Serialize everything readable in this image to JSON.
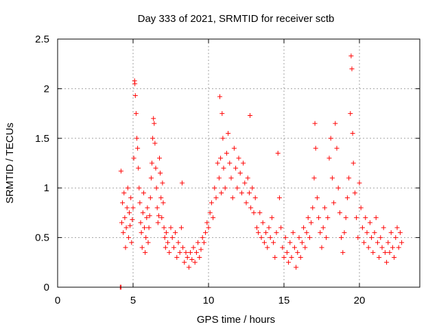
{
  "chart_data": {
    "type": "scatter",
    "title": "Day 333 of 2021, SRMTID for receiver sctb",
    "xlabel": "GPS time / hours",
    "ylabel": "SRMTID / TECUs",
    "xlim": [
      0,
      24
    ],
    "ylim": [
      0,
      2.5
    ],
    "x_ticks": [
      0,
      5,
      10,
      15,
      20
    ],
    "x_tick_labels": [
      "0",
      "5",
      "10",
      "15",
      "20"
    ],
    "y_ticks": [
      0,
      0.5,
      1,
      1.5,
      2,
      2.5
    ],
    "y_tick_labels": [
      "0",
      "0.5",
      "1",
      "1.5",
      "2",
      "2.5"
    ],
    "grid": true,
    "marker": "+",
    "series": [
      {
        "name": "SRMTID",
        "color": "#ff0000",
        "points": [
          [
            4.15,
            0.0
          ],
          [
            4.2,
            0.0
          ],
          [
            4.2,
            1.17
          ],
          [
            4.25,
            0.65
          ],
          [
            4.3,
            0.85
          ],
          [
            4.35,
            0.55
          ],
          [
            4.4,
            0.95
          ],
          [
            4.45,
            0.7
          ],
          [
            4.5,
            0.4
          ],
          [
            4.55,
            0.6
          ],
          [
            4.6,
            0.8
          ],
          [
            4.65,
            1.0
          ],
          [
            4.7,
            0.5
          ],
          [
            4.75,
            0.75
          ],
          [
            4.8,
            0.62
          ],
          [
            4.85,
            0.9
          ],
          [
            4.9,
            0.45
          ],
          [
            4.95,
            0.68
          ],
          [
            5.0,
            0.8
          ],
          [
            5.05,
            1.3
          ],
          [
            5.1,
            2.08
          ],
          [
            5.12,
            2.05
          ],
          [
            5.15,
            1.93
          ],
          [
            5.2,
            1.75
          ],
          [
            5.25,
            1.5
          ],
          [
            5.3,
            1.4
          ],
          [
            5.35,
            1.2
          ],
          [
            5.4,
            1.0
          ],
          [
            5.45,
            0.85
          ],
          [
            5.5,
            0.65
          ],
          [
            5.55,
            0.55
          ],
          [
            5.6,
            0.4
          ],
          [
            5.65,
            0.75
          ],
          [
            5.7,
            0.95
          ],
          [
            5.75,
            0.6
          ],
          [
            5.8,
            0.35
          ],
          [
            5.85,
            0.5
          ],
          [
            5.9,
            0.7
          ],
          [
            5.95,
            0.8
          ],
          [
            6.0,
            0.45
          ],
          [
            6.05,
            0.6
          ],
          [
            6.1,
            0.72
          ],
          [
            6.15,
            0.9
          ],
          [
            6.2,
            1.1
          ],
          [
            6.25,
            1.25
          ],
          [
            6.3,
            1.5
          ],
          [
            6.35,
            1.7
          ],
          [
            6.4,
            1.65
          ],
          [
            6.45,
            1.45
          ],
          [
            6.5,
            1.2
          ],
          [
            6.55,
            1.0
          ],
          [
            6.6,
            0.8
          ],
          [
            6.65,
            0.65
          ],
          [
            6.7,
            0.72
          ],
          [
            6.75,
            1.3
          ],
          [
            6.8,
            1.15
          ],
          [
            6.85,
            0.9
          ],
          [
            6.9,
            0.7
          ],
          [
            6.95,
            1.05
          ],
          [
            7.0,
            0.85
          ],
          [
            7.05,
            0.6
          ],
          [
            7.1,
            0.5
          ],
          [
            7.15,
            0.4
          ],
          [
            7.2,
            0.55
          ],
          [
            7.3,
            0.45
          ],
          [
            7.4,
            0.35
          ],
          [
            7.5,
            0.6
          ],
          [
            7.6,
            0.5
          ],
          [
            7.7,
            0.4
          ],
          [
            7.8,
            0.55
          ],
          [
            7.9,
            0.3
          ],
          [
            8.0,
            0.45
          ],
          [
            8.1,
            0.35
          ],
          [
            8.2,
            0.6
          ],
          [
            8.25,
            1.05
          ],
          [
            8.3,
            0.4
          ],
          [
            8.4,
            0.25
          ],
          [
            8.5,
            0.35
          ],
          [
            8.6,
            0.3
          ],
          [
            8.7,
            0.2
          ],
          [
            8.8,
            0.35
          ],
          [
            8.9,
            0.28
          ],
          [
            9.0,
            0.4
          ],
          [
            9.1,
            0.25
          ],
          [
            9.2,
            0.35
          ],
          [
            9.3,
            0.45
          ],
          [
            9.4,
            0.3
          ],
          [
            9.5,
            0.38
          ],
          [
            9.6,
            0.5
          ],
          [
            9.7,
            0.45
          ],
          [
            9.8,
            0.55
          ],
          [
            9.9,
            0.65
          ],
          [
            10.0,
            0.6
          ],
          [
            10.1,
            0.75
          ],
          [
            10.2,
            0.85
          ],
          [
            10.3,
            0.7
          ],
          [
            10.4,
            1.0
          ],
          [
            10.5,
            0.9
          ],
          [
            10.6,
            1.25
          ],
          [
            10.7,
            1.1
          ],
          [
            10.75,
            1.92
          ],
          [
            10.8,
            1.3
          ],
          [
            10.85,
            0.95
          ],
          [
            10.9,
            1.75
          ],
          [
            10.95,
            1.5
          ],
          [
            11.0,
            1.2
          ],
          [
            11.1,
            1.0
          ],
          [
            11.2,
            1.35
          ],
          [
            11.3,
            1.55
          ],
          [
            11.4,
            1.25
          ],
          [
            11.5,
            1.1
          ],
          [
            11.6,
            0.9
          ],
          [
            11.7,
            1.4
          ],
          [
            11.8,
            1.2
          ],
          [
            11.9,
            1.0
          ],
          [
            12.0,
            1.3
          ],
          [
            12.1,
            1.15
          ],
          [
            12.2,
            0.95
          ],
          [
            12.3,
            1.25
          ],
          [
            12.4,
            1.05
          ],
          [
            12.5,
            0.85
          ],
          [
            12.6,
            1.1
          ],
          [
            12.7,
            0.95
          ],
          [
            12.75,
            1.73
          ],
          [
            12.8,
            0.8
          ],
          [
            12.9,
            1.0
          ],
          [
            13.0,
            0.75
          ],
          [
            13.1,
            0.9
          ],
          [
            13.2,
            0.6
          ],
          [
            13.3,
            0.55
          ],
          [
            13.4,
            0.75
          ],
          [
            13.5,
            0.5
          ],
          [
            13.6,
            0.65
          ],
          [
            13.7,
            0.45
          ],
          [
            13.8,
            0.55
          ],
          [
            13.9,
            0.4
          ],
          [
            14.0,
            0.6
          ],
          [
            14.1,
            0.5
          ],
          [
            14.2,
            0.7
          ],
          [
            14.3,
            0.45
          ],
          [
            14.4,
            0.3
          ],
          [
            14.5,
            0.55
          ],
          [
            14.6,
            1.35
          ],
          [
            14.7,
            0.9
          ],
          [
            14.8,
            0.6
          ],
          [
            14.9,
            0.4
          ],
          [
            15.0,
            0.3
          ],
          [
            15.1,
            0.5
          ],
          [
            15.2,
            0.35
          ],
          [
            15.3,
            0.25
          ],
          [
            15.4,
            0.45
          ],
          [
            15.5,
            0.3
          ],
          [
            15.6,
            0.55
          ],
          [
            15.7,
            0.4
          ],
          [
            15.8,
            0.2
          ],
          [
            15.9,
            0.35
          ],
          [
            16.0,
            0.5
          ],
          [
            16.1,
            0.3
          ],
          [
            16.2,
            0.45
          ],
          [
            16.3,
            0.6
          ],
          [
            16.4,
            0.4
          ],
          [
            16.5,
            0.55
          ],
          [
            16.6,
            0.7
          ],
          [
            16.7,
            0.5
          ],
          [
            16.8,
            0.65
          ],
          [
            16.9,
            0.8
          ],
          [
            17.0,
            1.1
          ],
          [
            17.05,
            1.65
          ],
          [
            17.1,
            1.4
          ],
          [
            17.2,
            0.9
          ],
          [
            17.3,
            0.7
          ],
          [
            17.4,
            0.55
          ],
          [
            17.5,
            0.4
          ],
          [
            17.6,
            0.6
          ],
          [
            17.7,
            0.8
          ],
          [
            17.8,
            0.5
          ],
          [
            17.9,
            0.7
          ],
          [
            18.0,
            1.3
          ],
          [
            18.1,
            1.5
          ],
          [
            18.2,
            1.1
          ],
          [
            18.3,
            0.85
          ],
          [
            18.4,
            1.65
          ],
          [
            18.5,
            1.4
          ],
          [
            18.6,
            1.0
          ],
          [
            18.7,
            0.75
          ],
          [
            18.8,
            0.5
          ],
          [
            18.9,
            0.35
          ],
          [
            19.0,
            0.55
          ],
          [
            19.1,
            0.7
          ],
          [
            19.2,
            0.9
          ],
          [
            19.3,
            1.1
          ],
          [
            19.4,
            1.75
          ],
          [
            19.45,
            2.33
          ],
          [
            19.5,
            2.2
          ],
          [
            19.55,
            1.55
          ],
          [
            19.6,
            1.25
          ],
          [
            19.7,
            0.95
          ],
          [
            19.8,
            0.7
          ],
          [
            19.9,
            0.5
          ],
          [
            20.0,
            1.05
          ],
          [
            20.1,
            0.8
          ],
          [
            20.2,
            0.6
          ],
          [
            20.3,
            0.45
          ],
          [
            20.4,
            0.7
          ],
          [
            20.5,
            0.55
          ],
          [
            20.6,
            0.4
          ],
          [
            20.7,
            0.65
          ],
          [
            20.8,
            0.5
          ],
          [
            20.9,
            0.35
          ],
          [
            21.0,
            0.55
          ],
          [
            21.1,
            0.7
          ],
          [
            21.2,
            0.45
          ],
          [
            21.3,
            0.3
          ],
          [
            21.4,
            0.5
          ],
          [
            21.5,
            0.4
          ],
          [
            21.6,
            0.6
          ],
          [
            21.7,
            0.35
          ],
          [
            21.8,
            0.25
          ],
          [
            21.9,
            0.45
          ],
          [
            22.0,
            0.35
          ],
          [
            22.1,
            0.55
          ],
          [
            22.2,
            0.4
          ],
          [
            22.3,
            0.3
          ],
          [
            22.4,
            0.5
          ],
          [
            22.5,
            0.6
          ],
          [
            22.6,
            0.4
          ],
          [
            22.7,
            0.55
          ],
          [
            22.8,
            0.45
          ]
        ]
      }
    ]
  }
}
